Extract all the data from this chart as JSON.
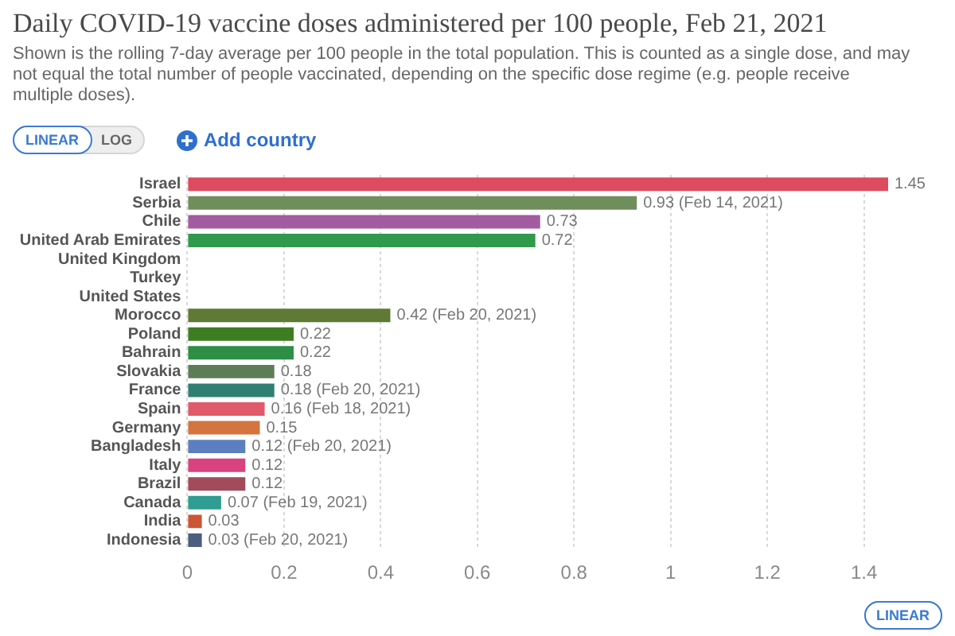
{
  "chart_data": {
    "type": "bar",
    "orientation": "horizontal",
    "title": "Daily COVID-19 vaccine doses administered per 100 people, Feb 21, 2021",
    "subtitle": "Shown is the rolling 7-day average per 100 people in the total population. This is counted as a single dose, and may not equal the total number of people vaccinated, depending on the specific dose regime (e.g. people receive multiple doses).",
    "annotations": [
      "LINEAR",
      "LOG",
      "Add country",
      "LINEAR"
    ],
    "categories": [
      "Israel",
      "Serbia",
      "Chile",
      "United Arab Emirates",
      "United Kingdom",
      "Turkey",
      "United States",
      "Morocco",
      "Poland",
      "Bahrain",
      "Slovakia",
      "France",
      "Spain",
      "Germany",
      "Bangladesh",
      "Italy",
      "Brazil",
      "Canada",
      "India",
      "Indonesia"
    ],
    "values": [
      1.45,
      0.93,
      0.73,
      0.72,
      null,
      null,
      null,
      0.42,
      0.22,
      0.22,
      0.18,
      0.18,
      0.16,
      0.15,
      0.12,
      0.12,
      0.12,
      0.07,
      0.03,
      0.03
    ],
    "colors": [
      "#dd4b5f",
      "#6f8e5c",
      "#a35ba1",
      "#2f9a4b",
      null,
      null,
      null,
      "#5e7a35",
      "#3e7d22",
      "#2d8f45",
      "#5d7d57",
      "#2f7f73",
      "#e05a6c",
      "#d4743f",
      "#5b7fbf",
      "#d8437f",
      "#a14b5b",
      "#2f9d91",
      "#cc5533",
      "#4c5d7e"
    ],
    "value_labels": [
      "1.45",
      "0.93 (Feb 14, 2021)",
      "0.73",
      "0.72",
      null,
      null,
      null,
      "0.42 (Feb 20, 2021)",
      "0.22",
      "0.22",
      "0.18",
      "0.18 (Feb 20, 2021)",
      "0.16 (Feb 18, 2021)",
      "0.15",
      "0.12 (Feb 20, 2021)",
      "0.12",
      "0.12",
      "0.07 (Feb 19, 2021)",
      "0.03",
      "0.03 (Feb 20, 2021)"
    ],
    "xlim": [
      0,
      1.45
    ],
    "xticks": [
      0,
      0.2,
      0.4,
      0.6,
      0.8,
      1,
      1.2,
      1.4
    ],
    "grid": "x"
  }
}
